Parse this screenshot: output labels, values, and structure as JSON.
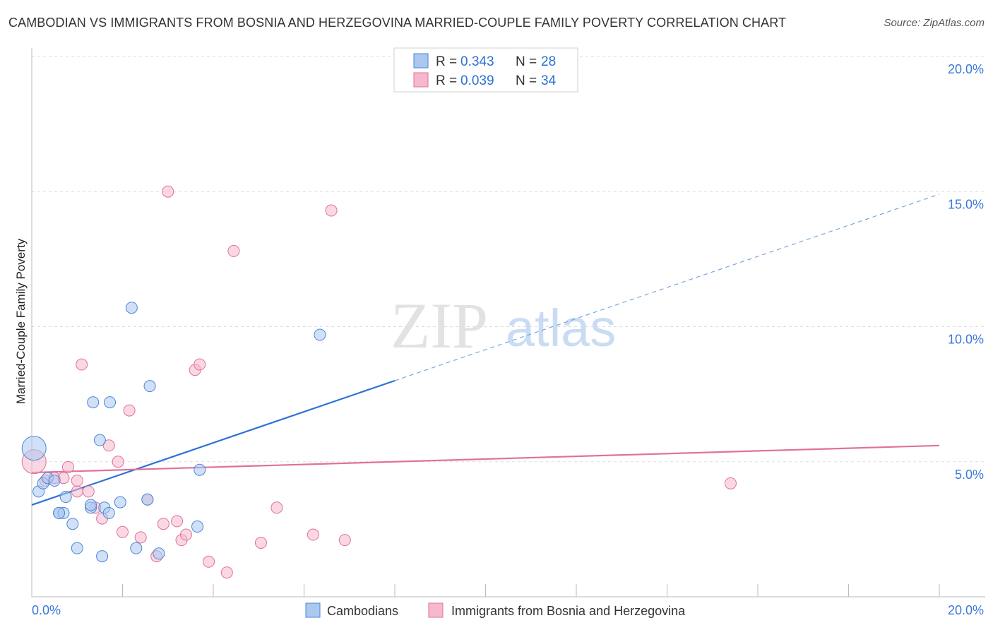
{
  "title": "CAMBODIAN VS IMMIGRANTS FROM BOSNIA AND HERZEGOVINA MARRIED-COUPLE FAMILY POVERTY CORRELATION CHART",
  "source": "Source: ZipAtlas.com",
  "watermark": {
    "zip": "ZIP",
    "atlas": "atlas"
  },
  "legend_top": [
    {
      "r_label": "R =",
      "r_value": "0.343",
      "n_label": "N =",
      "n_value": "28",
      "color": "#aac8f0"
    },
    {
      "r_label": "R =",
      "r_value": "0.039",
      "n_label": "N =",
      "n_value": "34",
      "color": "#f6b8cc"
    }
  ],
  "chart_data": {
    "type": "scatter",
    "title": "CAMBODIAN VS IMMIGRANTS FROM BOSNIA AND HERZEGOVINA MARRIED-COUPLE FAMILY POVERTY CORRELATION CHART",
    "xlabel": "",
    "ylabel": "Married-Couple Family Poverty",
    "xlim": [
      0,
      20
    ],
    "ylim": [
      0,
      20
    ],
    "x_tick_labels": [
      "0.0%",
      "20.0%"
    ],
    "y_tick_labels": [
      "5.0%",
      "10.0%",
      "15.0%",
      "20.0%"
    ],
    "y_ticks": [
      5,
      10,
      15,
      20
    ],
    "series": [
      {
        "name": "Cambodians",
        "color": "#4a86d8",
        "fill": "#aac8f0",
        "trend": {
          "x0": 0,
          "y0": 3.4,
          "x1": 8,
          "y1": 8.0,
          "x_dash_end": 20,
          "y_dash_end": 14.9
        },
        "points": [
          {
            "x": 0.05,
            "y": 5.5,
            "big": true
          },
          {
            "x": 0.15,
            "y": 3.9
          },
          {
            "x": 0.25,
            "y": 4.2
          },
          {
            "x": 0.35,
            "y": 4.4
          },
          {
            "x": 0.5,
            "y": 4.3
          },
          {
            "x": 0.6,
            "y": 3.1
          },
          {
            "x": 0.7,
            "y": 3.1
          },
          {
            "x": 0.75,
            "y": 3.7
          },
          {
            "x": 0.9,
            "y": 2.7
          },
          {
            "x": 1.0,
            "y": 1.8
          },
          {
            "x": 1.3,
            "y": 3.3
          },
          {
            "x": 1.35,
            "y": 7.2
          },
          {
            "x": 1.5,
            "y": 5.8
          },
          {
            "x": 1.55,
            "y": 1.5
          },
          {
            "x": 1.6,
            "y": 3.3
          },
          {
            "x": 1.7,
            "y": 3.1
          },
          {
            "x": 1.72,
            "y": 7.2
          },
          {
            "x": 1.95,
            "y": 3.5
          },
          {
            "x": 2.2,
            "y": 10.7
          },
          {
            "x": 2.3,
            "y": 1.8
          },
          {
            "x": 2.55,
            "y": 3.6
          },
          {
            "x": 2.6,
            "y": 7.8
          },
          {
            "x": 2.8,
            "y": 1.6
          },
          {
            "x": 3.65,
            "y": 2.6
          },
          {
            "x": 3.7,
            "y": 4.7
          },
          {
            "x": 6.35,
            "y": 9.7
          },
          {
            "x": 1.3,
            "y": 3.4
          },
          {
            "x": 0.6,
            "y": 3.1
          }
        ]
      },
      {
        "name": "Immigrants from Bosnia and Herzegovina",
        "color": "#e0709a",
        "fill": "#f6b8cc",
        "trend": {
          "x0": 0,
          "y0": 4.6,
          "x1": 20,
          "y1": 5.6
        },
        "points": [
          {
            "x": 0.05,
            "y": 5.0,
            "big": true
          },
          {
            "x": 0.3,
            "y": 4.3
          },
          {
            "x": 0.5,
            "y": 4.4
          },
          {
            "x": 0.7,
            "y": 4.4
          },
          {
            "x": 0.8,
            "y": 4.8
          },
          {
            "x": 1.0,
            "y": 3.9
          },
          {
            "x": 1.1,
            "y": 8.6
          },
          {
            "x": 1.25,
            "y": 3.9
          },
          {
            "x": 1.4,
            "y": 3.3
          },
          {
            "x": 1.55,
            "y": 2.9
          },
          {
            "x": 1.7,
            "y": 5.6
          },
          {
            "x": 1.9,
            "y": 5.0
          },
          {
            "x": 2.0,
            "y": 2.4
          },
          {
            "x": 2.15,
            "y": 6.9
          },
          {
            "x": 2.4,
            "y": 2.2
          },
          {
            "x": 2.55,
            "y": 3.6
          },
          {
            "x": 2.75,
            "y": 1.5
          },
          {
            "x": 2.9,
            "y": 2.7
          },
          {
            "x": 3.0,
            "y": 15.0
          },
          {
            "x": 3.2,
            "y": 2.8
          },
          {
            "x": 3.3,
            "y": 2.1
          },
          {
            "x": 3.4,
            "y": 2.3
          },
          {
            "x": 3.6,
            "y": 8.4
          },
          {
            "x": 3.7,
            "y": 8.6
          },
          {
            "x": 3.9,
            "y": 1.3
          },
          {
            "x": 4.3,
            "y": 0.9
          },
          {
            "x": 4.45,
            "y": 12.8
          },
          {
            "x": 5.05,
            "y": 2.0
          },
          {
            "x": 5.4,
            "y": 3.3
          },
          {
            "x": 6.2,
            "y": 2.3
          },
          {
            "x": 6.6,
            "y": 14.3
          },
          {
            "x": 6.9,
            "y": 2.1
          },
          {
            "x": 15.4,
            "y": 4.2
          },
          {
            "x": 1.0,
            "y": 4.3
          }
        ]
      }
    ],
    "legend_bottom": [
      "Cambodians",
      "Immigrants from Bosnia and Herzegovina"
    ]
  }
}
